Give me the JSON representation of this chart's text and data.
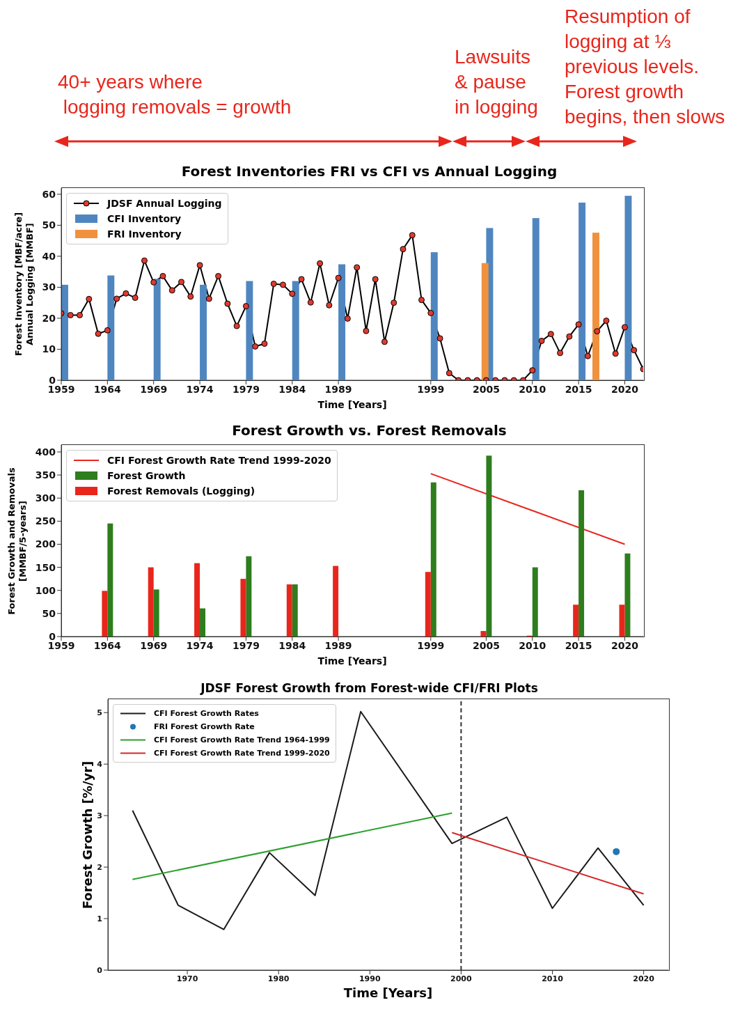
{
  "chart_data": [
    {
      "type": "bar",
      "title": "Forest Inventories FRI vs CFI vs Annual Logging",
      "xlabel": "Time [Years]",
      "ylabel": "Forest Inventory [MBF/acre]\nAnnual Logging [MMBF]",
      "annotations": [
        "40+ years where\n logging removals = growth",
        "Lawsuits\n& pause\nin logging",
        "Resumption of\nlogging at ⅓\nprevious levels.\nForest growth\nbegins, then slows"
      ],
      "xlim": [
        1959,
        2022
      ],
      "xticks": [
        1959,
        1964,
        1969,
        1974,
        1979,
        1984,
        1989,
        1999,
        2005,
        2010,
        2015,
        2020
      ],
      "ylim": [
        0,
        62
      ],
      "yticks": [
        0,
        10,
        20,
        30,
        40,
        50,
        60
      ],
      "legend": "top left",
      "marker": "circle",
      "series": [
        {
          "name": "JDSF Annual Logging",
          "type": "line",
          "color": "#000000",
          "x": [
            1959,
            1960,
            1961,
            1962,
            1963,
            1964,
            1965,
            1966,
            1967,
            1968,
            1969,
            1970,
            1971,
            1972,
            1973,
            1974,
            1975,
            1976,
            1977,
            1978,
            1979,
            1980,
            1981,
            1982,
            1983,
            1984,
            1985,
            1986,
            1987,
            1988,
            1989,
            1990,
            1991,
            1992,
            1993,
            1994,
            1995,
            1996,
            1997,
            1998,
            1999,
            2000,
            2001,
            2002,
            2003,
            2004,
            2005,
            2006,
            2007,
            2008,
            2009,
            2010,
            2011,
            2012,
            2013,
            2014,
            2015,
            2016,
            2017,
            2018,
            2019,
            2020,
            2021,
            2022
          ],
          "values": [
            21.6,
            21.0,
            21.0,
            26.2,
            15.0,
            16.1,
            26.3,
            28.0,
            26.6,
            38.6,
            31.6,
            33.6,
            29.0,
            31.7,
            27.0,
            37.1,
            26.3,
            33.6,
            24.7,
            17.5,
            23.9,
            10.9,
            11.8,
            31.1,
            30.8,
            27.9,
            32.6,
            25.1,
            37.7,
            24.2,
            33.0,
            19.9,
            36.4,
            15.9,
            32.6,
            12.4,
            25.0,
            42.3,
            46.8,
            25.9,
            21.7,
            13.5,
            2.3,
            0,
            0,
            0,
            0,
            0,
            0,
            0,
            0,
            3.2,
            12.7,
            14.9,
            8.8,
            14.1,
            18.0,
            7.8,
            15.8,
            19.2,
            8.6,
            17.1,
            9.7,
            3.6
          ]
        },
        {
          "name": "CFI Inventory",
          "color": "#4f86c0",
          "x": [
            1959,
            1964,
            1969,
            1974,
            1979,
            1984,
            1989,
            1999,
            2005,
            2010,
            2015,
            2020
          ],
          "values": [
            30.8,
            33.8,
            32.7,
            30.8,
            32.0,
            32.0,
            37.4,
            41.3,
            49.1,
            52.3,
            57.3,
            59.5
          ]
        },
        {
          "name": "FRI Inventory",
          "color": "#f0913e",
          "x": [
            2004.5,
            2016.5
          ],
          "values": [
            37.8,
            47.6
          ]
        }
      ]
    },
    {
      "type": "bar",
      "title": "Forest Growth vs. Forest Removals",
      "xlabel": "Time [Years]",
      "ylabel": "Forest Growth and Removals\n[MMBF/5-years]",
      "xlim": [
        1959,
        2022
      ],
      "xticks": [
        1959,
        1964,
        1969,
        1974,
        1979,
        1984,
        1989,
        1999,
        2005,
        2010,
        2015,
        2020
      ],
      "ylim": [
        0,
        415
      ],
      "yticks": [
        0,
        50,
        100,
        150,
        200,
        250,
        300,
        350,
        400
      ],
      "legend": "top left",
      "series": [
        {
          "name": "CFI Forest Growth Rate Trend 1999-2020",
          "type": "line",
          "color": "#e8261c",
          "x": [
            1999,
            2020
          ],
          "values": [
            353,
            200
          ]
        },
        {
          "name": "Forest Growth",
          "color": "#2e7d1e",
          "x": [
            1964,
            1969,
            1974,
            1979,
            1984,
            1989,
            1999,
            2005,
            2010,
            2015,
            2020
          ],
          "values": [
            245,
            102,
            61,
            174,
            113,
            null,
            334,
            392,
            150,
            317,
            180
          ]
        },
        {
          "name": "Forest Removals (Logging)",
          "color": "#e8261c",
          "x": [
            1964,
            1969,
            1974,
            1979,
            1984,
            1989,
            1999,
            2005,
            2010,
            2015,
            2020
          ],
          "values": [
            99,
            150,
            159,
            125,
            113,
            153,
            140,
            12,
            2,
            69,
            69
          ]
        }
      ]
    },
    {
      "type": "line",
      "title": "JDSF Forest Growth from Forest-wide CFI/FRI Plots",
      "xlabel": "Time [Years]",
      "ylabel": "Forest Growth [%/yr]",
      "xlim": [
        1961.3,
        2022.7
      ],
      "xticks": [
        1970,
        1980,
        1990,
        2000,
        2010,
        2020
      ],
      "ylim": [
        0,
        5.26
      ],
      "yticks": [
        0,
        1,
        2,
        3,
        4,
        5
      ],
      "legend": "top left",
      "marker": "none",
      "ref_lines": [
        {
          "axis": "x",
          "value": 2000,
          "color": "#333333",
          "line_style": "dashed"
        }
      ],
      "series": [
        {
          "name": "CFI Forest Growth Rates",
          "color": "#1a1a1a",
          "x": [
            1964,
            1969,
            1974,
            1979,
            1984,
            1989,
            1999,
            2005,
            2010,
            2015,
            2020
          ],
          "values": [
            3.1,
            1.26,
            0.79,
            2.28,
            1.45,
            5.02,
            2.46,
            2.97,
            1.2,
            2.37,
            1.26
          ]
        },
        {
          "name": "FRI Forest Growth Rate",
          "type": "scatter",
          "marker": "circle",
          "color": "#1f77b4",
          "x": [
            2017
          ],
          "values": [
            2.3
          ]
        },
        {
          "name": "CFI Forest Growth Rate Trend 1964-1999",
          "color": "#2ca02c",
          "x": [
            1964,
            1999
          ],
          "values": [
            1.76,
            3.05
          ]
        },
        {
          "name": "CFI Forest Growth Rate Trend 1999-2020",
          "color": "#d62728",
          "x": [
            1999,
            2020
          ],
          "values": [
            2.67,
            1.48
          ]
        }
      ]
    }
  ]
}
